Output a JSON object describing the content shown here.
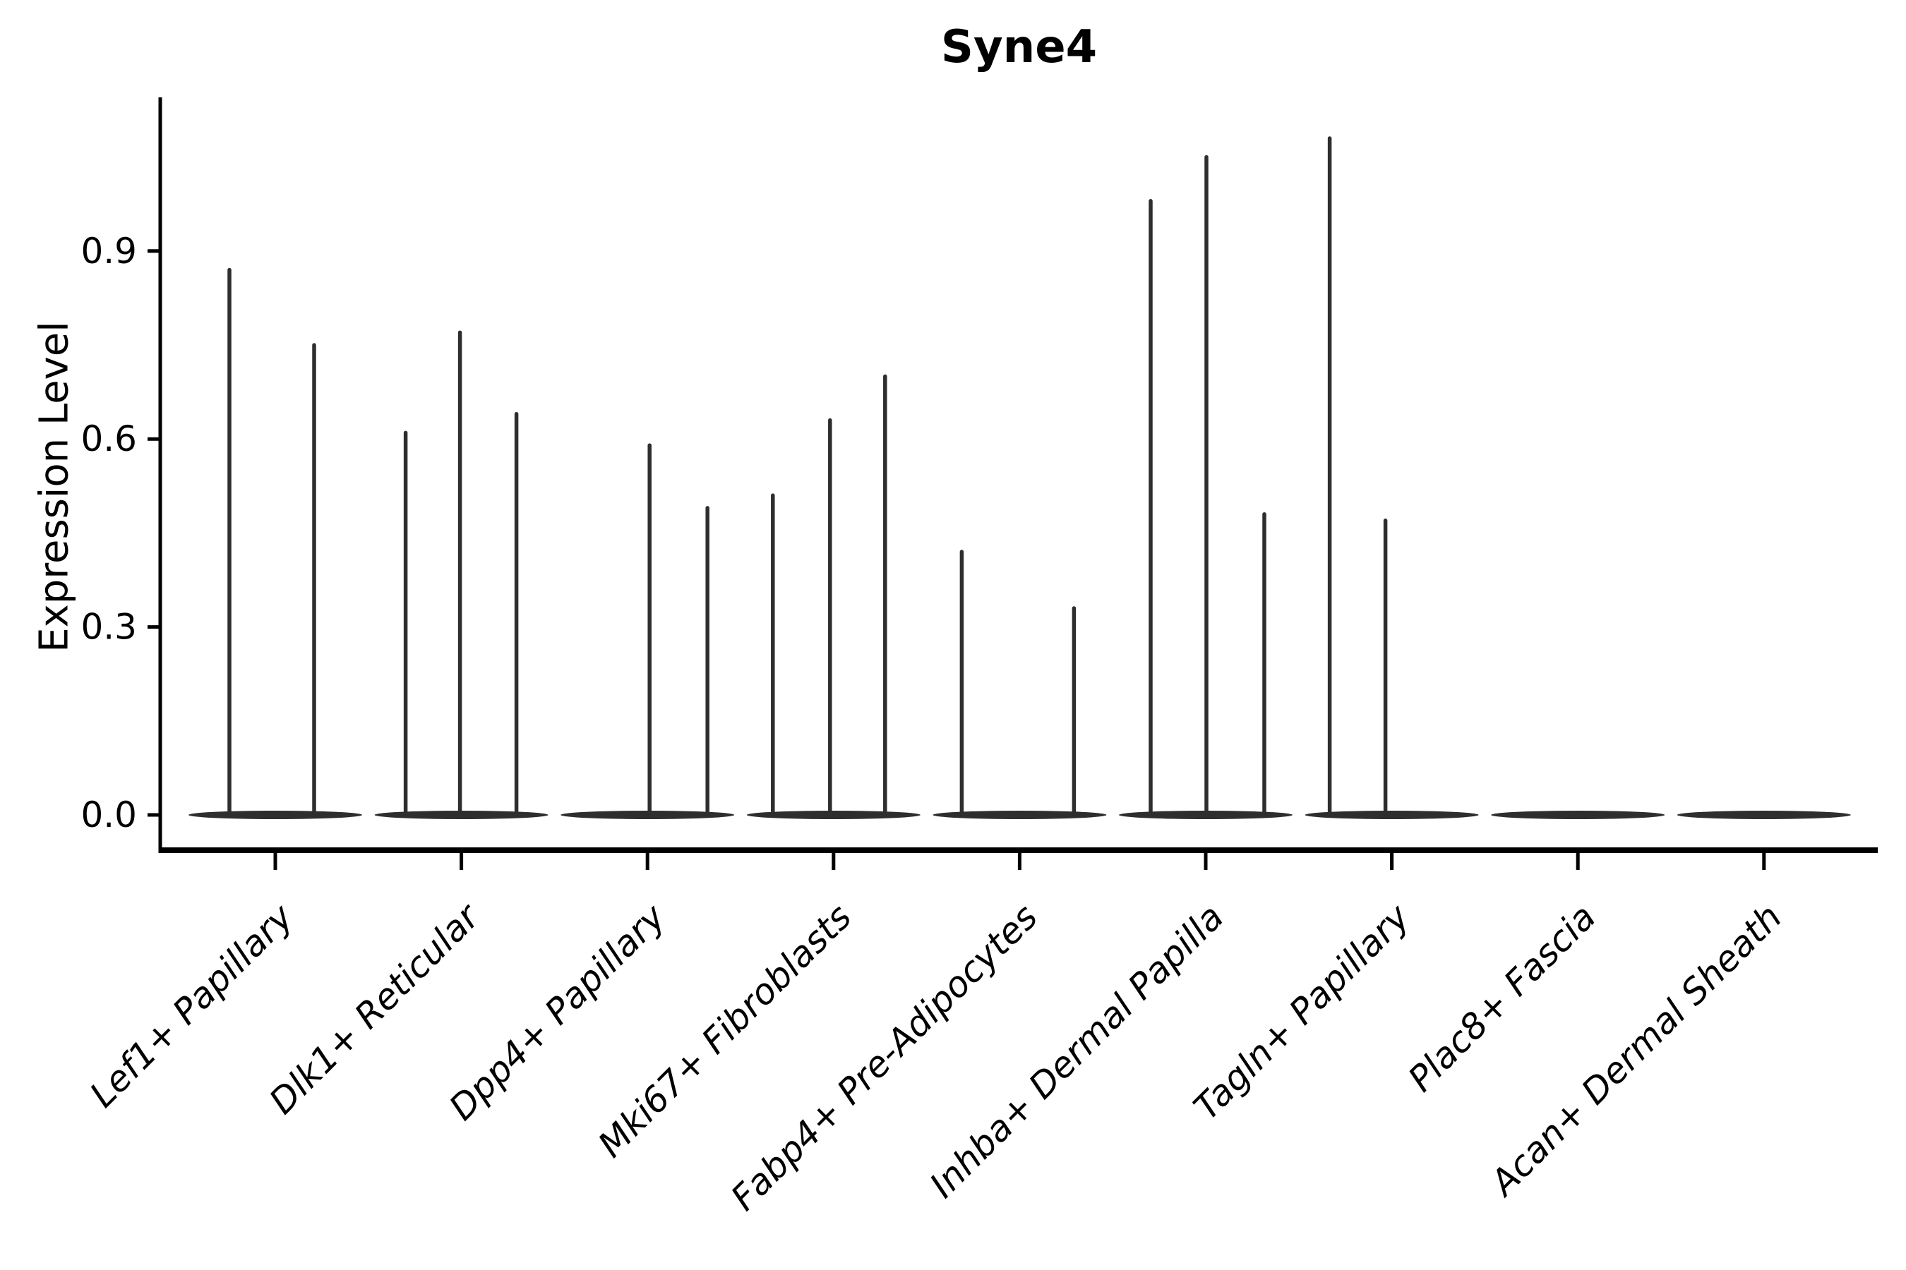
{
  "colors": {
    "background": "#ffffff",
    "axis": "#000000",
    "text": "#000000",
    "violin": "#2e2e2e"
  },
  "chart_data": {
    "type": "violin",
    "title": "Syne4",
    "xlabel": "",
    "ylabel": "Expression Level",
    "ylim": [
      -0.06,
      1.14
    ],
    "yticks": [
      0.0,
      0.3,
      0.6,
      0.9
    ],
    "grid": false,
    "legend": null,
    "style": "single-gene expression violin plot; each category shows a flat zero-density body with thin spikes at expressed-cell values",
    "categories": [
      "Lef1+ Papillary",
      "Dlk1+ Reticular",
      "Dpp4+ Papillary",
      "Mki67+ Fibroblasts",
      "Fabp4+ Pre-Adipocytes",
      "Inhba+ Dermal Papilla",
      "Tagln+ Papillary",
      "Plac8+ Fascia",
      "Acan+ Dermal Sheath"
    ],
    "violins": [
      {
        "category": "Lef1+ Papillary",
        "zero_peak": true,
        "expressed_values": [
          0.87,
          0.75
        ],
        "spikes": [
          {
            "dx": -65,
            "value": 0.87
          },
          {
            "dx": 55,
            "value": 0.75
          }
        ]
      },
      {
        "category": "Dlk1+ Reticular",
        "zero_peak": true,
        "expressed_values": [
          0.61,
          0.77,
          0.64
        ],
        "spikes": [
          {
            "dx": -79,
            "value": 0.61
          },
          {
            "dx": -2,
            "value": 0.77
          },
          {
            "dx": 78,
            "value": 0.64
          }
        ]
      },
      {
        "category": "Dpp4+ Papillary",
        "zero_peak": true,
        "expressed_values": [
          0.59,
          0.49
        ],
        "spikes": [
          {
            "dx": 3,
            "value": 0.59
          },
          {
            "dx": 85,
            "value": 0.49
          }
        ]
      },
      {
        "category": "Mki67+ Fibroblasts",
        "zero_peak": true,
        "expressed_values": [
          0.51,
          0.63,
          0.7
        ],
        "spikes": [
          {
            "dx": -86,
            "value": 0.51
          },
          {
            "dx": -5,
            "value": 0.63
          },
          {
            "dx": 73,
            "value": 0.7
          }
        ]
      },
      {
        "category": "Fabp4+ Pre-Adipocytes",
        "zero_peak": true,
        "expressed_values": [
          0.42,
          0.33
        ],
        "spikes": [
          {
            "dx": -82,
            "value": 0.42
          },
          {
            "dx": 77,
            "value": 0.33
          }
        ]
      },
      {
        "category": "Inhba+ Dermal Papilla",
        "zero_peak": true,
        "expressed_values": [
          0.98,
          1.05,
          0.48
        ],
        "spikes": [
          {
            "dx": -78,
            "value": 0.98
          },
          {
            "dx": 1,
            "value": 1.05
          },
          {
            "dx": 83,
            "value": 0.48
          }
        ]
      },
      {
        "category": "Tagln+ Papillary",
        "zero_peak": true,
        "expressed_values": [
          1.08,
          0.47
        ],
        "spikes": [
          {
            "dx": -88,
            "value": 1.08
          },
          {
            "dx": -9,
            "value": 0.47
          }
        ]
      },
      {
        "category": "Plac8+ Fascia",
        "zero_peak": true,
        "expressed_values": [],
        "spikes": []
      },
      {
        "category": "Acan+ Dermal Sheath",
        "zero_peak": true,
        "expressed_values": [],
        "spikes": []
      }
    ]
  }
}
